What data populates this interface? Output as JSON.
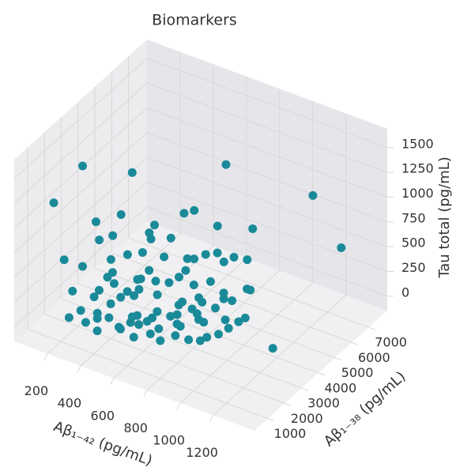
{
  "chart_data": {
    "type": "scatter3d",
    "title": "Biomarkers",
    "xlabel": "Aβ₁₋₄₂ (pg/mL)",
    "ylabel": "Aβ₁₋₃₈ (pg/mL)",
    "zlabel": "Tau total (pg/mL)",
    "color": "#1a8a99",
    "grid": true,
    "xlim": [
      0,
      1450
    ],
    "ylim": [
      200,
      8100
    ],
    "zlim": [
      -145,
      1690
    ],
    "xticks": [
      200,
      400,
      600,
      800,
      1000,
      1200
    ],
    "yticks": [
      1000,
      2000,
      3000,
      4000,
      5000,
      6000,
      7000
    ],
    "zticks": [
      0,
      250,
      500,
      750,
      1000,
      1250,
      1500
    ],
    "x": [
      700,
      1124,
      1305,
      930,
      1230,
      140,
      50,
      430,
      610,
      220,
      300,
      350,
      420,
      480,
      520,
      560,
      600,
      650,
      700,
      760,
      800,
      850,
      900,
      950,
      1000,
      1050,
      1100,
      260,
      330,
      390,
      450,
      510,
      570,
      630,
      690,
      740,
      790,
      840,
      880,
      940,
      990,
      1040,
      280,
      340,
      400,
      460,
      530,
      590,
      660,
      720,
      780,
      830,
      890,
      960,
      1020,
      1080,
      240,
      310,
      370,
      440,
      500,
      550,
      620,
      680,
      750,
      810,
      870,
      930,
      300,
      360,
      420,
      480,
      540,
      610,
      670,
      730,
      790,
      850,
      200,
      270,
      330,
      390,
      460,
      520,
      580,
      640,
      700,
      760,
      820,
      900,
      980,
      1060,
      380,
      500,
      640,
      780,
      250,
      450,
      720,
      950
    ],
    "y": [
      5900,
      6890,
      6790,
      5220,
      3460,
      2890,
      2060,
      2980,
      4290,
      1500,
      1200,
      2600,
      1800,
      2200,
      3100,
      1600,
      2800,
      2000,
      3500,
      2400,
      1900,
      3000,
      2600,
      3300,
      2900,
      3700,
      3100,
      900,
      1700,
      2300,
      1400,
      2700,
      1900,
      3200,
      1500,
      2900,
      2100,
      3600,
      2500,
      2000,
      3400,
      2700,
      2500,
      1100,
      3000,
      2000,
      1300,
      3300,
      2200,
      1700,
      3900,
      2600,
      1800,
      3200,
      2300,
      2900,
      1900,
      2900,
      1500,
      3500,
      2400,
      1800,
      1200,
      3800,
      2600,
      2100,
      4100,
      3000,
      3600,
      2200,
      1000,
      2800,
      4200,
      1600,
      3400,
      2300,
      4500,
      2700,
      1200,
      3400,
      2000,
      1300,
      3700,
      2500,
      2900,
      1800,
      4000,
      1400,
      3100,
      4400,
      2000,
      3800,
      4800,
      1500,
      4600,
      3200,
      2600,
      3900,
      5200,
      4700
    ],
    "z": [
      1200,
      1000,
      600,
      800,
      50,
      1300,
      1000,
      1400,
      900,
      300,
      200,
      400,
      250,
      350,
      450,
      180,
      300,
      220,
      500,
      260,
      150,
      350,
      240,
      400,
      280,
      500,
      330,
      150,
      280,
      360,
      190,
      420,
      210,
      380,
      160,
      300,
      230,
      460,
      270,
      170,
      390,
      250,
      700,
      120,
      550,
      310,
      140,
      600,
      260,
      200,
      650,
      330,
      180,
      480,
      240,
      310,
      500,
      460,
      170,
      520,
      290,
      200,
      130,
      560,
      320,
      220,
      600,
      340,
      800,
      420,
      100,
      380,
      620,
      190,
      430,
      240,
      580,
      280,
      650,
      600,
      300,
      160,
      700,
      350,
      410,
      210,
      540,
      150,
      360,
      620,
      230,
      480,
      560,
      110,
      900,
      450,
      850,
      600,
      700,
      580
    ]
  }
}
